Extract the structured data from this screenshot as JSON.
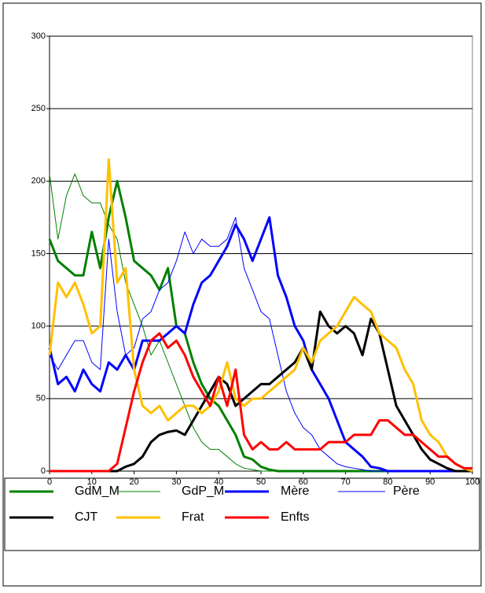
{
  "chart_data": {
    "type": "line",
    "x": [
      0,
      2,
      4,
      6,
      8,
      10,
      12,
      14,
      16,
      18,
      20,
      22,
      24,
      26,
      28,
      30,
      32,
      34,
      36,
      38,
      40,
      42,
      44,
      46,
      48,
      50,
      52,
      54,
      56,
      58,
      60,
      62,
      64,
      66,
      68,
      70,
      72,
      74,
      76,
      78,
      80,
      82,
      84,
      86,
      88,
      90,
      92,
      94,
      96,
      98,
      100
    ],
    "xlim": [
      0,
      100
    ],
    "xticks": [
      0,
      10,
      20,
      30,
      40,
      50,
      60,
      70,
      80,
      90,
      100
    ],
    "ylim": [
      0,
      300
    ],
    "yticks": [
      0,
      50,
      100,
      150,
      200,
      250,
      300
    ],
    "grid": true,
    "series": [
      {
        "name": "GdM_M",
        "color": "#008000",
        "width": 3,
        "values": [
          160,
          145,
          140,
          135,
          135,
          165,
          140,
          175,
          200,
          175,
          145,
          140,
          135,
          125,
          140,
          100,
          95,
          75,
          60,
          50,
          45,
          35,
          25,
          10,
          8,
          3,
          1,
          0,
          0,
          0,
          0,
          0,
          0,
          0,
          0,
          0,
          0,
          0,
          0,
          0,
          0,
          0,
          0,
          0,
          0,
          0,
          0,
          0,
          0,
          0,
          0
        ]
      },
      {
        "name": "GdP_M",
        "color": "#008000",
        "width": 1,
        "values": [
          205,
          160,
          190,
          205,
          190,
          185,
          185,
          170,
          160,
          130,
          115,
          100,
          80,
          90,
          75,
          60,
          45,
          30,
          20,
          15,
          15,
          10,
          5,
          2,
          1,
          0,
          0,
          0,
          0,
          0,
          0,
          0,
          0,
          0,
          0,
          0,
          0,
          0,
          0,
          0,
          0,
          0,
          0,
          0,
          0,
          0,
          0,
          0,
          0,
          0,
          0
        ]
      },
      {
        "name": "Mère",
        "color": "#0000ff",
        "width": 3,
        "values": [
          85,
          60,
          65,
          55,
          70,
          60,
          55,
          75,
          70,
          80,
          70,
          90,
          90,
          90,
          95,
          100,
          95,
          115,
          130,
          135,
          145,
          155,
          170,
          160,
          145,
          160,
          175,
          135,
          120,
          100,
          90,
          70,
          60,
          50,
          35,
          20,
          15,
          10,
          3,
          2,
          0,
          0,
          0,
          0,
          0,
          0,
          0,
          0,
          0,
          0,
          0
        ]
      },
      {
        "name": "Père",
        "color": "#0000ff",
        "width": 1,
        "values": [
          80,
          70,
          80,
          90,
          90,
          75,
          70,
          160,
          110,
          80,
          85,
          105,
          110,
          125,
          130,
          145,
          165,
          150,
          160,
          155,
          155,
          160,
          175,
          140,
          125,
          110,
          105,
          80,
          55,
          40,
          30,
          25,
          15,
          10,
          5,
          3,
          2,
          1,
          0,
          0,
          0,
          0,
          0,
          0,
          0,
          0,
          0,
          0,
          0,
          0,
          0
        ]
      },
      {
        "name": "CJT",
        "color": "#000000",
        "width": 3,
        "values": [
          0,
          0,
          0,
          0,
          0,
          0,
          0,
          0,
          0,
          3,
          5,
          10,
          20,
          25,
          27,
          28,
          25,
          35,
          45,
          55,
          65,
          60,
          45,
          50,
          55,
          60,
          60,
          65,
          70,
          75,
          85,
          70,
          110,
          100,
          95,
          100,
          95,
          80,
          105,
          95,
          70,
          45,
          35,
          25,
          15,
          8,
          5,
          2,
          0,
          0,
          0
        ]
      },
      {
        "name": "Frat",
        "color": "#ffc000",
        "width": 3,
        "values": [
          80,
          130,
          120,
          130,
          115,
          95,
          100,
          215,
          130,
          140,
          70,
          45,
          40,
          45,
          35,
          40,
          45,
          45,
          40,
          45,
          55,
          75,
          50,
          45,
          50,
          50,
          55,
          60,
          65,
          70,
          85,
          75,
          90,
          95,
          100,
          110,
          120,
          115,
          110,
          95,
          90,
          85,
          70,
          60,
          35,
          25,
          20,
          10,
          5,
          2,
          0
        ]
      },
      {
        "name": "Enfts",
        "color": "#ff0000",
        "width": 3,
        "values": [
          0,
          0,
          0,
          0,
          0,
          0,
          0,
          0,
          5,
          30,
          55,
          75,
          90,
          95,
          85,
          90,
          80,
          65,
          55,
          45,
          65,
          45,
          70,
          25,
          15,
          20,
          15,
          15,
          20,
          15,
          15,
          15,
          15,
          20,
          20,
          20,
          25,
          25,
          25,
          35,
          35,
          30,
          25,
          25,
          20,
          15,
          10,
          10,
          5,
          2,
          2
        ]
      }
    ]
  }
}
